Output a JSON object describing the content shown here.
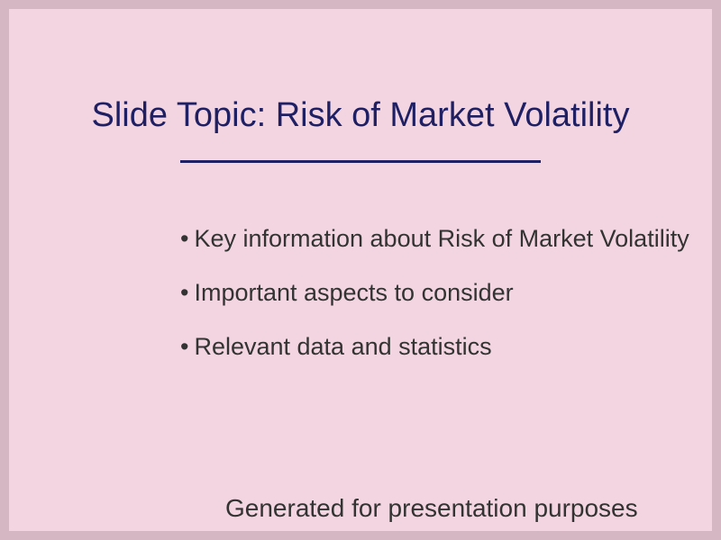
{
  "slide": {
    "title": "Slide Topic: Risk of Market Volatility",
    "bullet_glyph": "•",
    "bullets": [
      "Key information about Risk of Market Volatility",
      "Important aspects to consider",
      "Relevant data and statistics"
    ],
    "footer": "Generated for presentation purposes"
  },
  "colors": {
    "page_border": "#d5b7c4",
    "slide_background": "#f2d5e0",
    "title_color": "#1f1f64",
    "body_text": "#333333"
  }
}
